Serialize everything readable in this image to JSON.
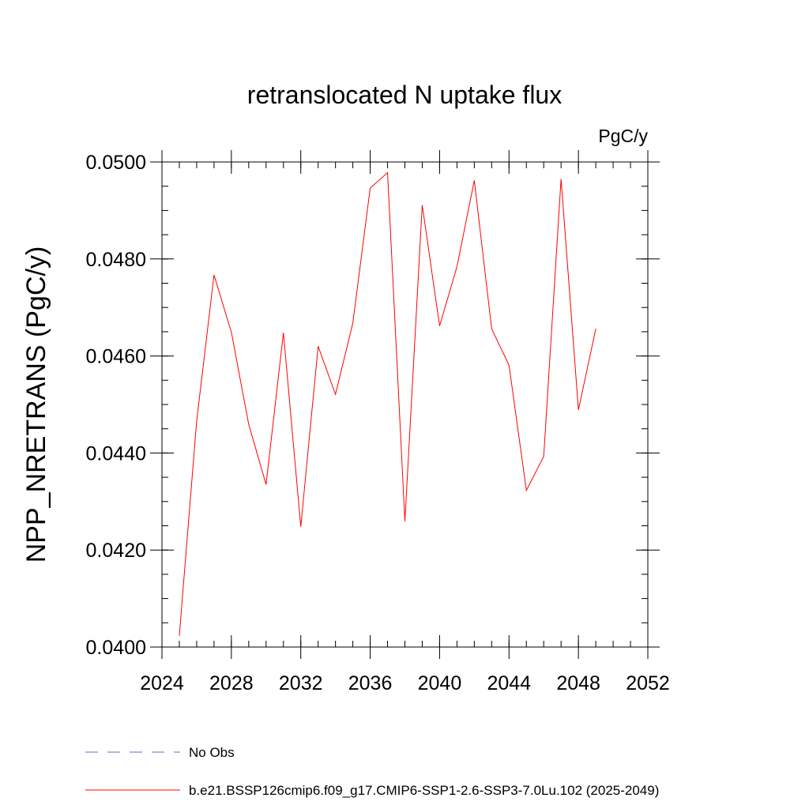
{
  "chart_data": {
    "type": "line",
    "title": "retranslocated N uptake flux",
    "units": "PgC/y",
    "xlabel": "",
    "ylabel": "NPP_NRETRANS  (PgC/y)",
    "xlim": [
      2024,
      2052
    ],
    "ylim": [
      0.04,
      0.05
    ],
    "x_ticks": [
      2024,
      2028,
      2032,
      2036,
      2040,
      2044,
      2048,
      2052
    ],
    "x_tick_labels": [
      "2024",
      "2028",
      "2032",
      "2036",
      "2040",
      "2044",
      "2048",
      "2052"
    ],
    "y_ticks": [
      0.04,
      0.042,
      0.044,
      0.046,
      0.048,
      0.05
    ],
    "y_tick_labels": [
      "0.0400",
      "0.0420",
      "0.0440",
      "0.0460",
      "0.0480",
      "0.0500"
    ],
    "grid": false,
    "legend_position": "bottom",
    "series": [
      {
        "name": "b.e21.BSSP126cmip6.f09_g17.CMIP6-SSP1-2.6-SSP3-7.0Lu.102 (2025-2049)",
        "color": "#ff0000",
        "style": "solid",
        "x": [
          2025,
          2026,
          2027,
          2028,
          2029,
          2030,
          2031,
          2032,
          2033,
          2034,
          2035,
          2036,
          2037,
          2038,
          2039,
          2040,
          2041,
          2042,
          2043,
          2044,
          2045,
          2046,
          2047,
          2048,
          2049
        ],
        "values": [
          0.04023,
          0.04466,
          0.04767,
          0.04649,
          0.04459,
          0.04335,
          0.04648,
          0.04248,
          0.0462,
          0.04521,
          0.04668,
          0.04946,
          0.04978,
          0.04259,
          0.04911,
          0.04662,
          0.04784,
          0.04962,
          0.04656,
          0.04581,
          0.04323,
          0.04393,
          0.04965,
          0.04489,
          0.04656
        ]
      }
    ],
    "legend": [
      {
        "label": "No Obs",
        "color": "#6a6ad0",
        "style": "dashed"
      },
      {
        "label": "b.e21.BSSP126cmip6.f09_g17.CMIP6-SSP1-2.6-SSP3-7.0Lu.102 (2025-2049)",
        "color": "#ff0000",
        "style": "solid"
      }
    ]
  }
}
